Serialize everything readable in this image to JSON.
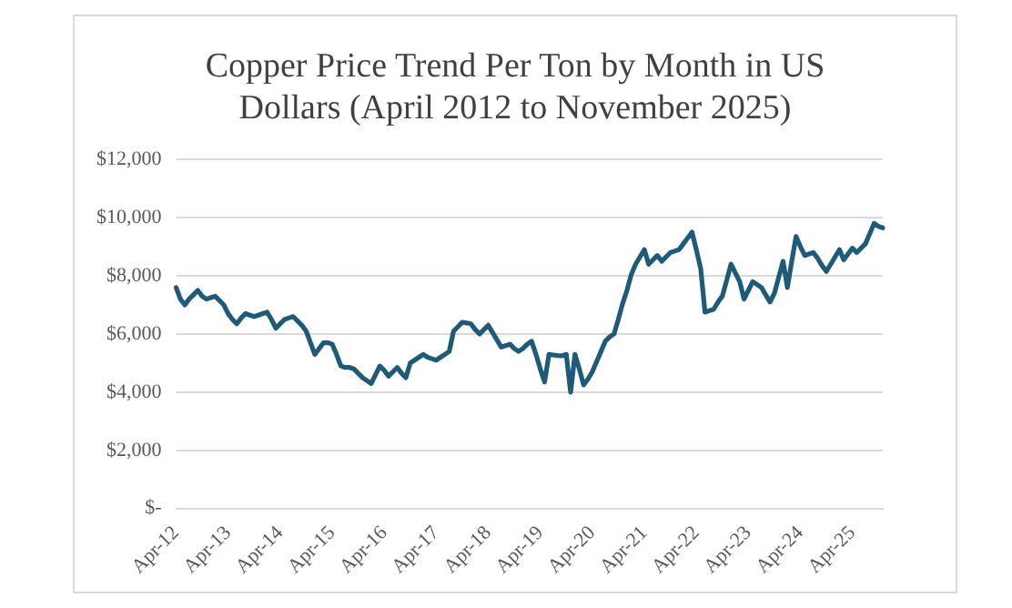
{
  "chart_data": {
    "type": "line",
    "title": "Copper Price Trend Per Ton by Month in US Dollars (April 2012 to November 2025)",
    "categories": [
      "Apr-12",
      null,
      null,
      null,
      null,
      null,
      null,
      null,
      null,
      null,
      null,
      null,
      "Apr-13",
      null,
      null,
      null,
      null,
      null,
      null,
      null,
      null,
      null,
      null,
      null,
      "Apr-14",
      null,
      null,
      null,
      null,
      null,
      null,
      null,
      null,
      null,
      null,
      null,
      "Apr-15",
      null,
      null,
      null,
      null,
      null,
      null,
      null,
      null,
      null,
      null,
      null,
      "Apr-16",
      null,
      null,
      null,
      null,
      null,
      null,
      null,
      null,
      null,
      null,
      null,
      "Apr-17",
      null,
      null,
      null,
      null,
      null,
      null,
      null,
      null,
      null,
      null,
      null,
      "Apr-18",
      null,
      null,
      null,
      null,
      null,
      null,
      null,
      null,
      null,
      null,
      null,
      "Apr-19",
      null,
      null,
      null,
      null,
      null,
      null,
      null,
      null,
      null,
      null,
      null,
      "Apr-20",
      null,
      null,
      null,
      null,
      null,
      null,
      null,
      null,
      null,
      null,
      null,
      "Apr-21",
      null,
      null,
      null,
      null,
      null,
      null,
      null,
      null,
      null,
      null,
      null,
      "Apr-22",
      null,
      null,
      null,
      null,
      null,
      null,
      null,
      null,
      null,
      null,
      null,
      "Apr-23",
      null,
      null,
      null,
      null,
      null,
      null,
      null,
      null,
      null,
      null,
      null,
      "Apr-24",
      null,
      null,
      null,
      null,
      null,
      null,
      null,
      null,
      null,
      null,
      null,
      "Apr-25",
      null,
      null,
      null,
      null,
      null,
      null,
      null
    ],
    "series": [
      {
        "color": "#1d5b79",
        "values": [
          7600,
          7200,
          7000,
          7200,
          7350,
          7500,
          7300,
          7200,
          7250,
          7300,
          7150,
          7000,
          6700,
          6500,
          6350,
          6550,
          6700,
          6650,
          6600,
          6650,
          6700,
          6750,
          6500,
          6200,
          6350,
          6500,
          6550,
          6600,
          6450,
          6300,
          6100,
          5700,
          5300,
          5500,
          5700,
          5700,
          5650,
          5300,
          4900,
          4850,
          4850,
          4800,
          4650,
          4500,
          4400,
          4300,
          4600,
          4900,
          4750,
          4550,
          4700,
          4850,
          4650,
          4500,
          5000,
          5100,
          5200,
          5300,
          5200,
          5150,
          5100,
          5200,
          5300,
          5400,
          6100,
          6250,
          6400,
          6380,
          6350,
          6150,
          6000,
          6150,
          6300,
          6050,
          5800,
          5550,
          5600,
          5650,
          5500,
          5400,
          5500,
          5650,
          5750,
          5300,
          4800,
          4350,
          5300,
          5280,
          5260,
          5250,
          5300,
          4000,
          5300,
          4800,
          4250,
          4450,
          4700,
          5050,
          5400,
          5750,
          5900,
          6000,
          6500,
          7050,
          7500,
          8050,
          8400,
          8650,
          8900,
          8400,
          8550,
          8700,
          8500,
          8650,
          8800,
          8850,
          8900,
          9100,
          9300,
          9500,
          8900,
          8250,
          6750,
          6800,
          6850,
          7100,
          7300,
          7850,
          8400,
          8100,
          7800,
          7200,
          7500,
          7800,
          7700,
          7600,
          7350,
          7100,
          7400,
          7950,
          8500,
          7600,
          8500,
          9350,
          9000,
          8700,
          8750,
          8800,
          8600,
          8350,
          8150,
          8400,
          8650,
          8900,
          8550,
          8750,
          8950,
          8800,
          8950,
          9100,
          9450,
          9800,
          9700,
          9650
        ]
      }
    ],
    "ylim": [
      0,
      12000
    ],
    "yticks": [
      {
        "value": 0,
        "label": "$-"
      },
      {
        "value": 2000,
        "label": "$2,000"
      },
      {
        "value": 4000,
        "label": "$4,000"
      },
      {
        "value": 6000,
        "label": "$6,000"
      },
      {
        "value": 8000,
        "label": "$8,000"
      },
      {
        "value": 10000,
        "label": "$10,000"
      },
      {
        "value": 12000,
        "label": "$12,000"
      }
    ],
    "grid": "y",
    "legend": false,
    "marker": "none",
    "line_style": "solid"
  }
}
